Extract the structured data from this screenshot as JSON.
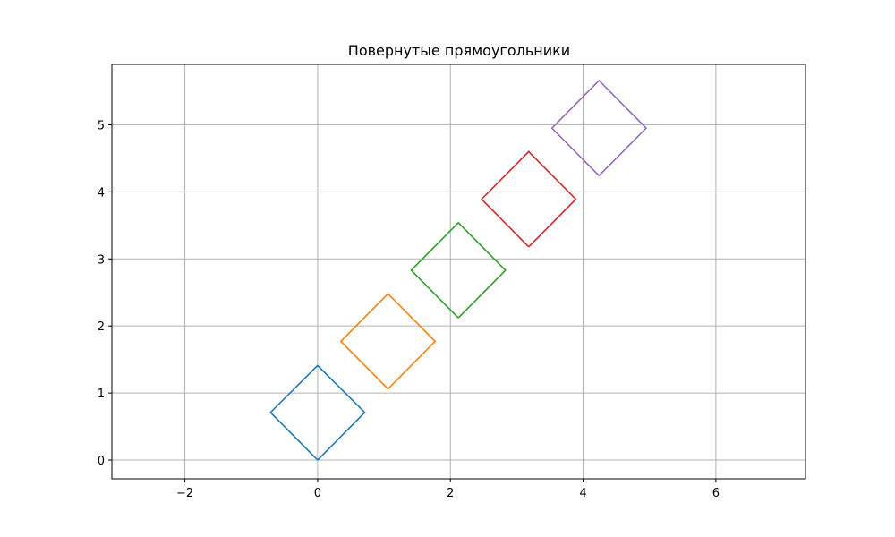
{
  "chart_data": {
    "type": "line",
    "title": "Повернутые прямоугольники",
    "xlabel": "",
    "ylabel": "",
    "xlim": [
      -3.1,
      7.35
    ],
    "ylim": [
      -0.28,
      5.9
    ],
    "xticks": [
      -2,
      0,
      2,
      4,
      6
    ],
    "yticks": [
      0,
      1,
      2,
      3,
      4,
      5
    ],
    "xtick_labels": [
      "−2",
      "0",
      "2",
      "4",
      "6"
    ],
    "ytick_labels": [
      "0",
      "1",
      "2",
      "3",
      "4",
      "5"
    ],
    "grid": true,
    "series": [
      {
        "color": "#1f77b4",
        "points": [
          [
            0,
            0
          ],
          [
            0.71,
            0.71
          ],
          [
            0,
            1.41
          ],
          [
            -0.71,
            0.71
          ],
          [
            0,
            0
          ]
        ]
      },
      {
        "color": "#ff7f0e",
        "points": [
          [
            1.06,
            1.06
          ],
          [
            1.77,
            1.77
          ],
          [
            1.06,
            2.48
          ],
          [
            0.35,
            1.77
          ],
          [
            1.06,
            1.06
          ]
        ]
      },
      {
        "color": "#2ca02c",
        "points": [
          [
            2.12,
            2.12
          ],
          [
            2.83,
            2.83
          ],
          [
            2.12,
            3.54
          ],
          [
            1.41,
            2.83
          ],
          [
            2.12,
            2.12
          ]
        ]
      },
      {
        "color": "#d62728",
        "points": [
          [
            3.18,
            3.18
          ],
          [
            3.89,
            3.89
          ],
          [
            3.18,
            4.6
          ],
          [
            2.47,
            3.89
          ],
          [
            3.18,
            3.18
          ]
        ]
      },
      {
        "color": "#9467bd",
        "points": [
          [
            4.24,
            4.24
          ],
          [
            4.95,
            4.95
          ],
          [
            4.24,
            5.66
          ],
          [
            3.53,
            4.95
          ],
          [
            4.24,
            4.24
          ]
        ]
      }
    ]
  }
}
